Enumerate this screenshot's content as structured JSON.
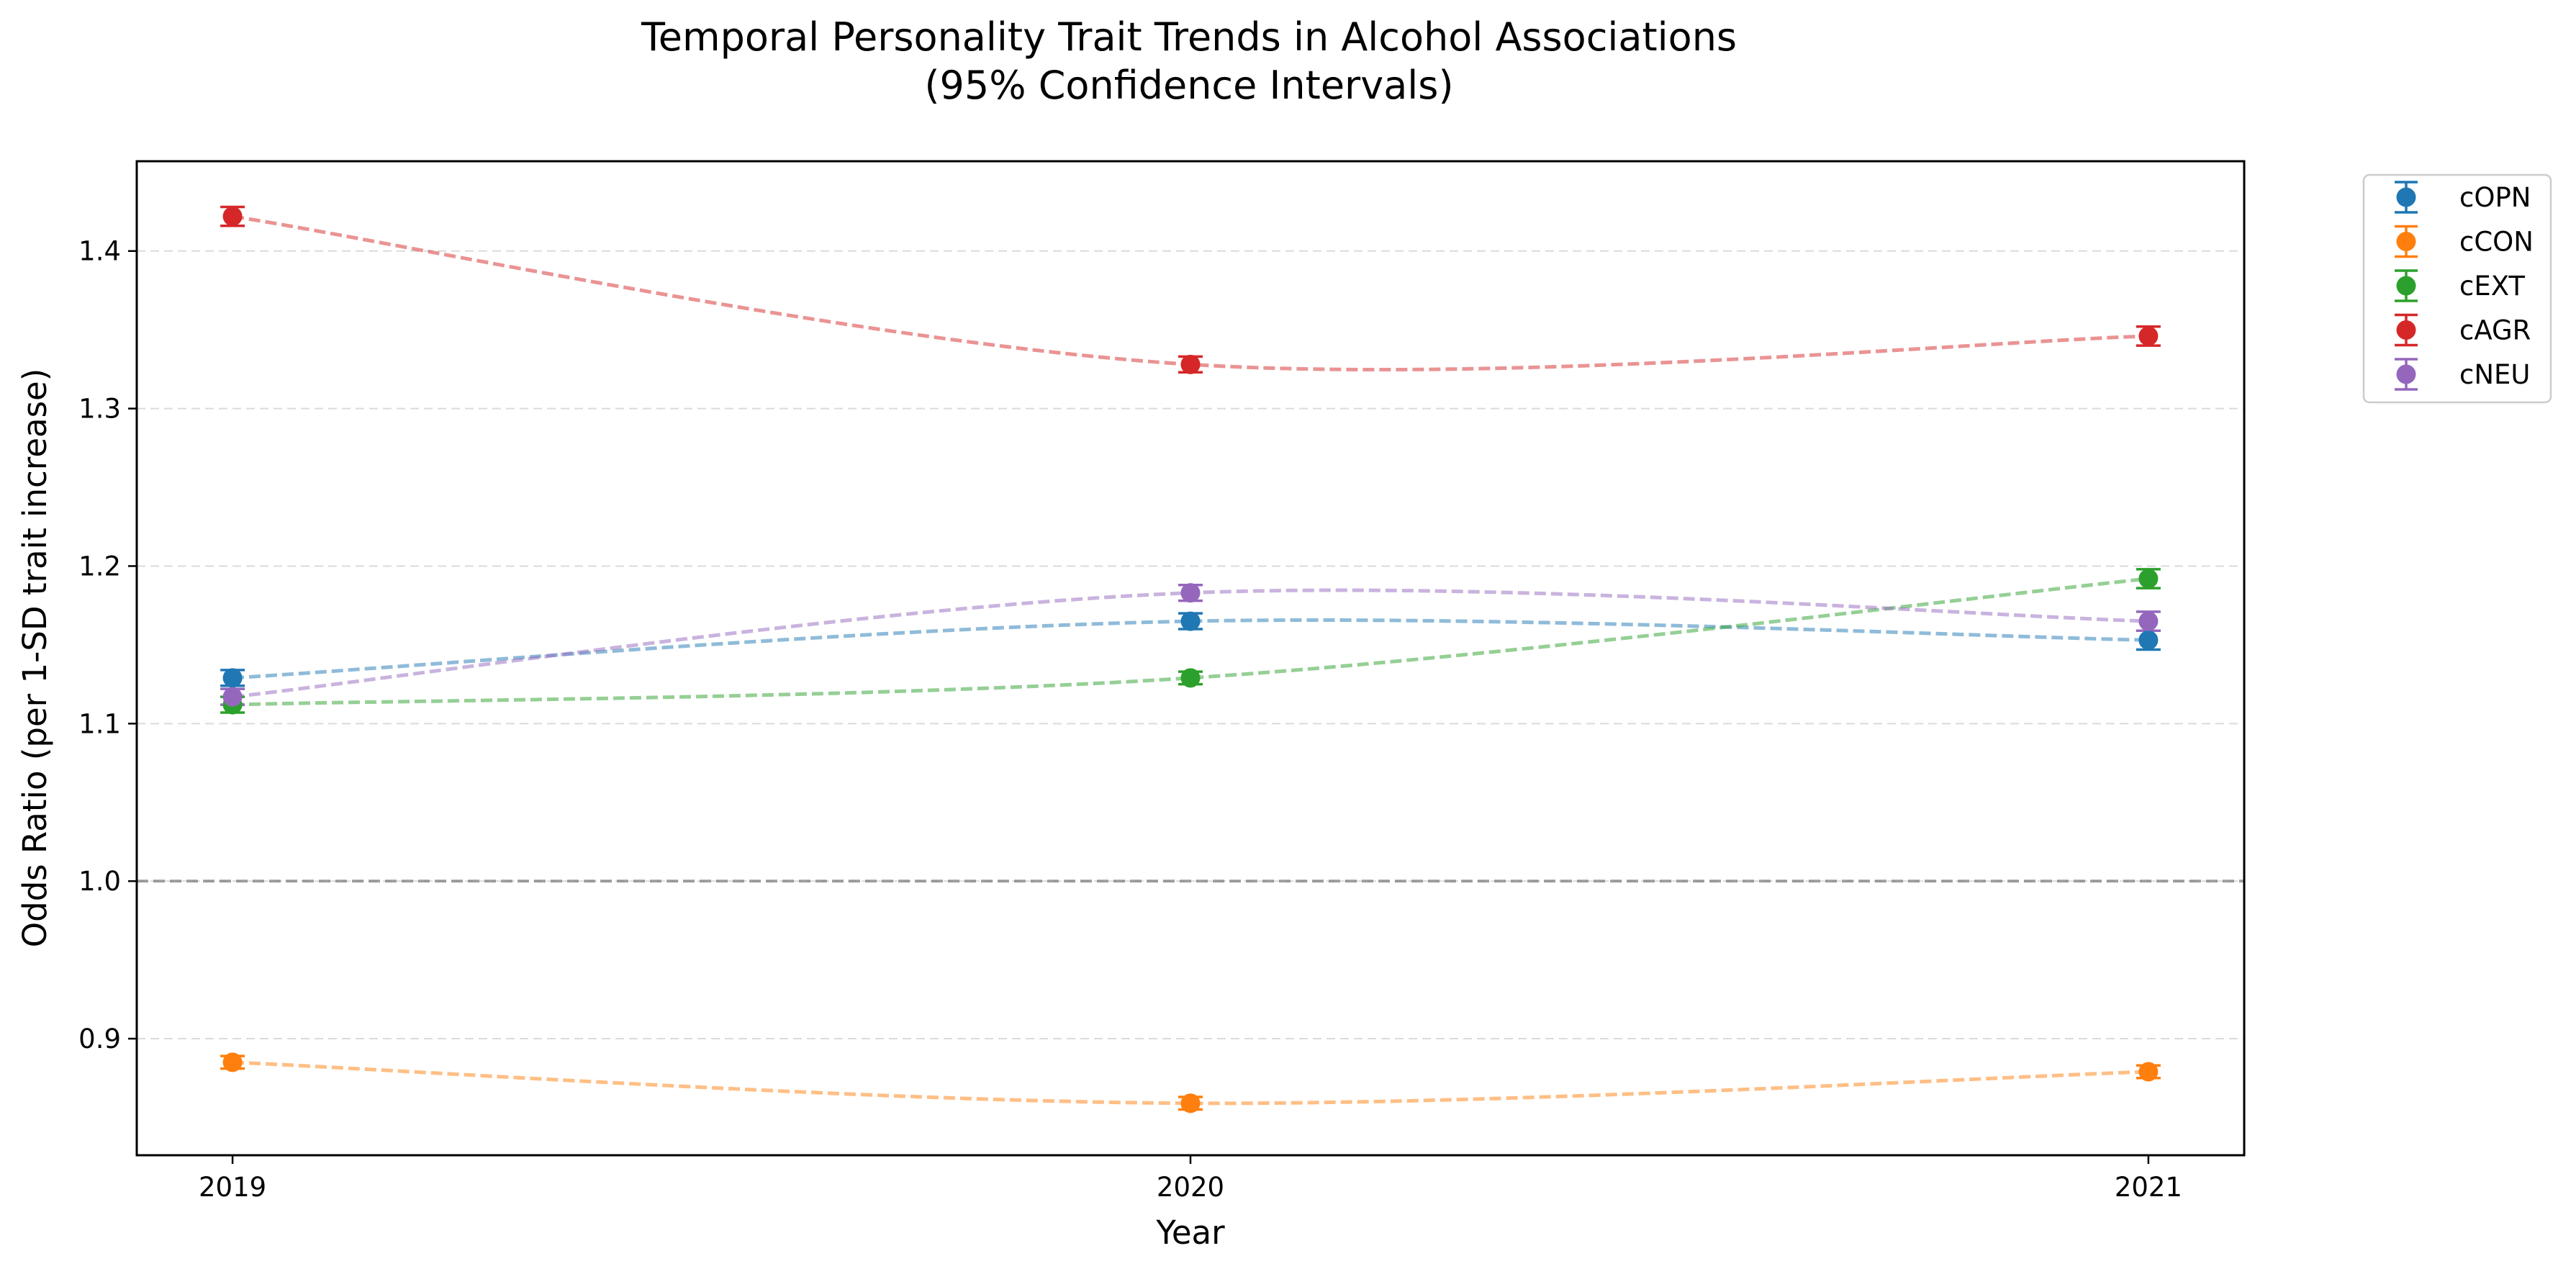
{
  "chart_data": {
    "type": "line",
    "title": "Temporal Personality Trait Trends in Alcohol Associations",
    "subtitle": "(95% Confidence Intervals)",
    "xlabel": "Year",
    "ylabel": "Odds Ratio (per 1-SD trait increase)",
    "x": [
      2019,
      2020,
      2021
    ],
    "x_tick_labels": [
      "2019",
      "2020",
      "2021"
    ],
    "ylim": [
      0.826,
      1.457
    ],
    "y_ticks": [
      0.9,
      1.0,
      1.1,
      1.2,
      1.3,
      1.4
    ],
    "y_tick_labels": [
      "0.9",
      "1.0",
      "1.1",
      "1.2",
      "1.3",
      "1.4"
    ],
    "reference_line": 1.0,
    "grid": "y",
    "legend_position": "outside-top-right",
    "series": [
      {
        "name": "cOPN",
        "color": "#1f77b4",
        "values": [
          1.129,
          1.165,
          1.153
        ],
        "ci_low": [
          1.124,
          1.16,
          1.147
        ],
        "ci_high": [
          1.134,
          1.17,
          1.159
        ]
      },
      {
        "name": "cCON",
        "color": "#ff7f0e",
        "values": [
          0.885,
          0.859,
          0.879
        ],
        "ci_low": [
          0.881,
          0.855,
          0.875
        ],
        "ci_high": [
          0.889,
          0.863,
          0.883
        ]
      },
      {
        "name": "cEXT",
        "color": "#2ca02c",
        "values": [
          1.112,
          1.129,
          1.192
        ],
        "ci_low": [
          1.107,
          1.125,
          1.186
        ],
        "ci_high": [
          1.117,
          1.133,
          1.198
        ]
      },
      {
        "name": "cAGR",
        "color": "#d62728",
        "values": [
          1.422,
          1.328,
          1.346
        ],
        "ci_low": [
          1.416,
          1.323,
          1.34
        ],
        "ci_high": [
          1.428,
          1.333,
          1.352
        ]
      },
      {
        "name": "cNEU",
        "color": "#9467bd",
        "values": [
          1.117,
          1.183,
          1.165
        ],
        "ci_low": [
          1.112,
          1.178,
          1.159
        ],
        "ci_high": [
          1.122,
          1.188,
          1.171
        ]
      }
    ]
  }
}
